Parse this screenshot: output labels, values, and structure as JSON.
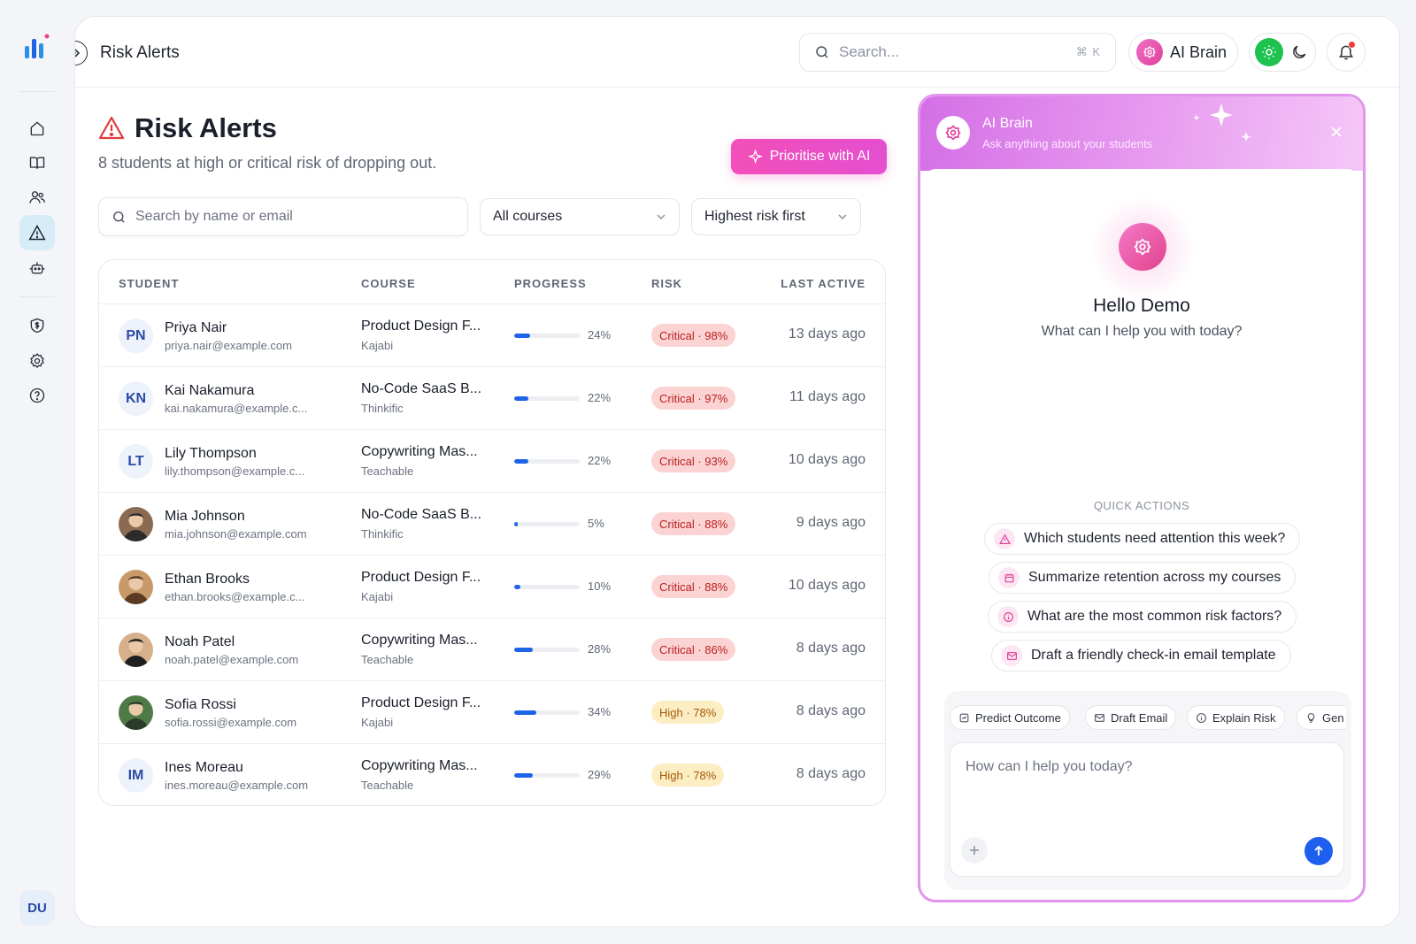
{
  "sidebar": {
    "items": [
      {
        "icon": "home-icon"
      },
      {
        "icon": "book-icon"
      },
      {
        "icon": "users-icon"
      },
      {
        "icon": "warning-icon",
        "active": true
      },
      {
        "icon": "robot-icon"
      },
      {
        "icon": "shield-dollar-icon"
      },
      {
        "icon": "gear-icon"
      },
      {
        "icon": "help-icon"
      }
    ],
    "user_initials": "DU"
  },
  "topbar": {
    "title": "Risk Alerts",
    "search_placeholder": "Search...",
    "search_shortcut": "⌘ K",
    "ai_brain_label": "AI Brain"
  },
  "page": {
    "title": "Risk Alerts",
    "subtitle": "8 students at high or critical risk of dropping out.",
    "prioritise_label": "Prioritise with AI",
    "search_placeholder": "Search by name or email",
    "course_filter": "All courses",
    "sort_filter": "Highest risk first"
  },
  "table": {
    "columns": [
      "STUDENT",
      "COURSE",
      "PROGRESS",
      "RISK",
      "LAST ACTIVE"
    ],
    "rows": [
      {
        "initials": "PN",
        "name": "Priya Nair",
        "email": "priya.nair@example.com",
        "course": "Product Design F...",
        "platform": "Kajabi",
        "progress": 24,
        "progress_label": "24%",
        "risk": "Critical · 98%",
        "level": "critical",
        "last": "13 days ago"
      },
      {
        "initials": "KN",
        "name": "Kai Nakamura",
        "email": "kai.nakamura@example.c...",
        "course": "No-Code SaaS B...",
        "platform": "Thinkific",
        "progress": 22,
        "progress_label": "22%",
        "risk": "Critical · 97%",
        "level": "critical",
        "last": "11 days ago"
      },
      {
        "initials": "LT",
        "name": "Lily Thompson",
        "email": "lily.thompson@example.c...",
        "course": "Copywriting Mas...",
        "platform": "Teachable",
        "progress": 22,
        "progress_label": "22%",
        "risk": "Critical · 93%",
        "level": "critical",
        "last": "10 days ago"
      },
      {
        "initials": "",
        "photo": true,
        "name": "Mia Johnson",
        "email": "mia.johnson@example.com",
        "course": "No-Code SaaS B...",
        "platform": "Thinkific",
        "progress": 5,
        "progress_label": "5%",
        "risk": "Critical · 88%",
        "level": "critical",
        "last": "9 days ago"
      },
      {
        "initials": "",
        "photo": true,
        "name": "Ethan Brooks",
        "email": "ethan.brooks@example.c...",
        "course": "Product Design F...",
        "platform": "Kajabi",
        "progress": 10,
        "progress_label": "10%",
        "risk": "Critical · 88%",
        "level": "critical",
        "last": "10 days ago"
      },
      {
        "initials": "",
        "photo": true,
        "name": "Noah Patel",
        "email": "noah.patel@example.com",
        "course": "Copywriting Mas...",
        "platform": "Teachable",
        "progress": 28,
        "progress_label": "28%",
        "risk": "Critical · 86%",
        "level": "critical",
        "last": "8 days ago"
      },
      {
        "initials": "",
        "photo": true,
        "name": "Sofia Rossi",
        "email": "sofia.rossi@example.com",
        "course": "Product Design F...",
        "platform": "Kajabi",
        "progress": 34,
        "progress_label": "34%",
        "risk": "High · 78%",
        "level": "high",
        "last": "8 days ago"
      },
      {
        "initials": "IM",
        "name": "Ines Moreau",
        "email": "ines.moreau@example.com",
        "course": "Copywriting Mas...",
        "platform": "Teachable",
        "progress": 29,
        "progress_label": "29%",
        "risk": "High · 78%",
        "level": "high",
        "last": "8 days ago"
      }
    ]
  },
  "ai_panel": {
    "title": "AI Brain",
    "subtitle": "Ask anything about your students",
    "greeting": "Hello Demo",
    "prompt": "What can I help you with today?",
    "quick_actions_label": "QUICK ACTIONS",
    "quick_actions": [
      {
        "label": "Which students need attention this week?",
        "icon": "warning-icon"
      },
      {
        "label": "Summarize retention across my courses",
        "icon": "calendar-icon"
      },
      {
        "label": "What are the most common risk factors?",
        "icon": "info-icon"
      },
      {
        "label": "Draft a friendly check-in email template",
        "icon": "mail-icon"
      }
    ],
    "chips": [
      "Predict Outcome",
      "Draft Email",
      "Explain Risk",
      "Gen"
    ],
    "input_placeholder": "How can I help you today?"
  },
  "colors": {
    "accent_blue": "#1e63e8",
    "ai_pink": "#e44fd0",
    "critical_bg": "#fcd3d3",
    "high_bg": "#fdedc2",
    "active_nav": "#d6ecf7"
  }
}
